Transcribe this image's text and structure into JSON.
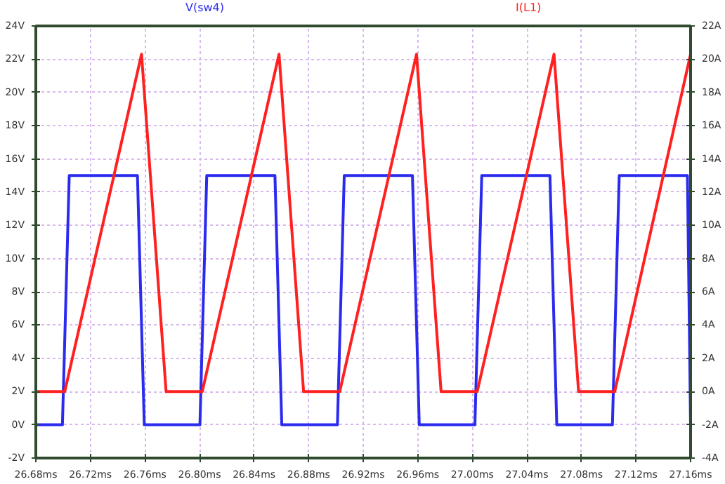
{
  "chart_data": {
    "type": "line",
    "xlim": [
      26.68,
      27.16
    ],
    "ylim": [
      -2,
      24
    ],
    "y2lim": [
      -4,
      22
    ],
    "xticks": [
      {
        "value": 26.68,
        "label": "26.68ms"
      },
      {
        "value": 26.72,
        "label": "26.72ms"
      },
      {
        "value": 26.76,
        "label": "26.76ms"
      },
      {
        "value": 26.8,
        "label": "26.80ms"
      },
      {
        "value": 26.84,
        "label": "26.84ms"
      },
      {
        "value": 26.88,
        "label": "26.88ms"
      },
      {
        "value": 26.92,
        "label": "26.92ms"
      },
      {
        "value": 26.96,
        "label": "26.96ms"
      },
      {
        "value": 27.0,
        "label": "27.00ms"
      },
      {
        "value": 27.04,
        "label": "27.04ms"
      },
      {
        "value": 27.08,
        "label": "27.08ms"
      },
      {
        "value": 27.12,
        "label": "27.12ms"
      },
      {
        "value": 27.16,
        "label": "27.16ms"
      }
    ],
    "yticks": [
      {
        "value": -2,
        "label": "-2V"
      },
      {
        "value": 0,
        "label": "0V"
      },
      {
        "value": 2,
        "label": "2V"
      },
      {
        "value": 4,
        "label": "4V"
      },
      {
        "value": 6,
        "label": "6V"
      },
      {
        "value": 8,
        "label": "8V"
      },
      {
        "value": 10,
        "label": "10V"
      },
      {
        "value": 12,
        "label": "12V"
      },
      {
        "value": 14,
        "label": "14V"
      },
      {
        "value": 16,
        "label": "16V"
      },
      {
        "value": 18,
        "label": "18V"
      },
      {
        "value": 20,
        "label": "20V"
      },
      {
        "value": 22,
        "label": "22V"
      },
      {
        "value": 24,
        "label": "24V"
      }
    ],
    "y2ticks": [
      {
        "value": -4,
        "label": "-4A"
      },
      {
        "value": -2,
        "label": "-2A"
      },
      {
        "value": 0,
        "label": "0A"
      },
      {
        "value": 2,
        "label": "2A"
      },
      {
        "value": 4,
        "label": "4A"
      },
      {
        "value": 6,
        "label": "6A"
      },
      {
        "value": 8,
        "label": "8A"
      },
      {
        "value": 10,
        "label": "10A"
      },
      {
        "value": 12,
        "label": "12A"
      },
      {
        "value": 14,
        "label": "14A"
      },
      {
        "value": 16,
        "label": "16A"
      },
      {
        "value": 18,
        "label": "18A"
      },
      {
        "value": 20,
        "label": "20A"
      },
      {
        "value": 22,
        "label": "22A"
      }
    ],
    "grid": true,
    "series": [
      {
        "name": "V(sw4)",
        "color": "#2b2bf0",
        "x": [
          26.68,
          26.6995,
          26.7045,
          26.7545,
          26.7595,
          26.8003,
          26.8053,
          26.8553,
          26.8603,
          26.9011,
          26.9061,
          26.9561,
          26.9611,
          27.0019,
          27.0069,
          27.0569,
          27.0619,
          27.1027,
          27.1077,
          27.1577,
          27.16
        ],
        "values": [
          0,
          0,
          15,
          15,
          0,
          0,
          15,
          15,
          0,
          0,
          15,
          15,
          0,
          0,
          15,
          15,
          0,
          0,
          15,
          15,
          0
        ]
      },
      {
        "name": "I(L1)",
        "color": "#ff2020",
        "axis": "y2",
        "x": [
          26.68,
          26.7012,
          26.7575,
          26.7755,
          26.802,
          26.8583,
          26.8763,
          26.9028,
          26.9591,
          26.9771,
          27.0036,
          27.0599,
          27.0779,
          27.1044,
          27.16
        ],
        "values": [
          0,
          0,
          20.3,
          0,
          0,
          20.3,
          0,
          0,
          20.3,
          0,
          0,
          20.3,
          0,
          0,
          20.3
        ]
      }
    ]
  }
}
